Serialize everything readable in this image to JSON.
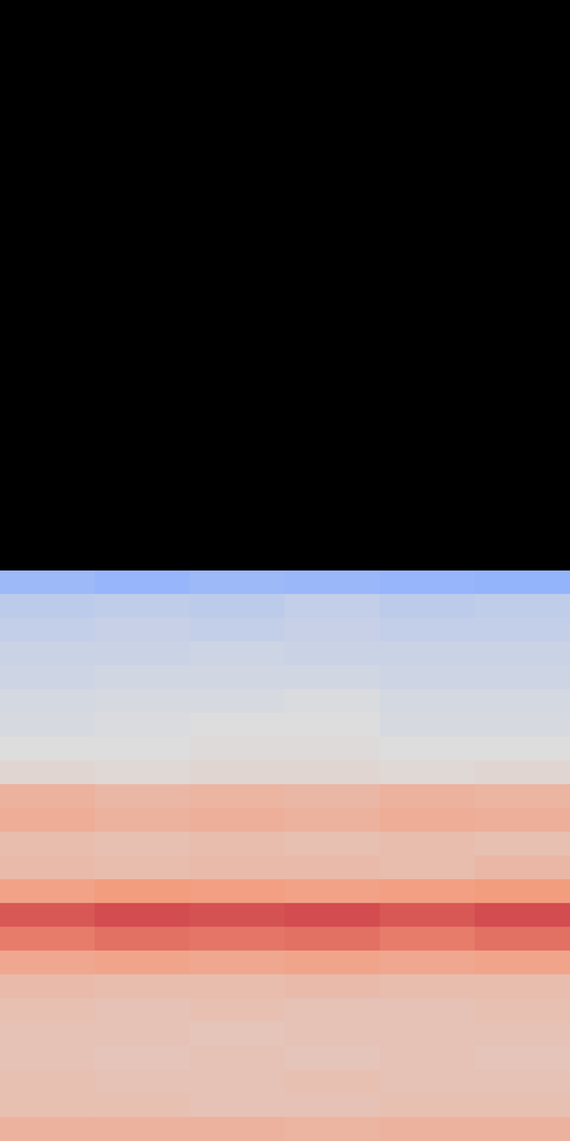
{
  "chart_data": {
    "type": "heatmap",
    "tick_labels": false,
    "xlim": [
      0,
      6
    ],
    "ylim": [
      0,
      24
    ],
    "zlim": [
      0,
      1
    ],
    "cells": [
      [
        0.3,
        0.28,
        0.3,
        0.29,
        0.28,
        0.27
      ],
      [
        0.4,
        0.41,
        0.4,
        0.42,
        0.4,
        0.41
      ],
      [
        0.42,
        0.43,
        0.42,
        0.43,
        0.42,
        0.42
      ],
      [
        0.44,
        0.44,
        0.45,
        0.44,
        0.44,
        0.44
      ],
      [
        0.45,
        0.46,
        0.46,
        0.46,
        0.45,
        0.45
      ],
      [
        0.47,
        0.48,
        0.48,
        0.49,
        0.47,
        0.47
      ],
      [
        0.48,
        0.49,
        0.5,
        0.5,
        0.48,
        0.48
      ],
      [
        0.5,
        0.5,
        0.51,
        0.51,
        0.5,
        0.5
      ],
      [
        0.53,
        0.52,
        0.53,
        0.53,
        0.52,
        0.53
      ],
      [
        0.66,
        0.64,
        0.65,
        0.64,
        0.66,
        0.65
      ],
      [
        0.68,
        0.66,
        0.67,
        0.66,
        0.68,
        0.67
      ],
      [
        0.62,
        0.61,
        0.62,
        0.61,
        0.62,
        0.61
      ],
      [
        0.63,
        0.62,
        0.63,
        0.63,
        0.62,
        0.64
      ],
      [
        0.72,
        0.74,
        0.73,
        0.72,
        0.73,
        0.74
      ],
      [
        0.86,
        0.88,
        0.87,
        0.88,
        0.86,
        0.88
      ],
      [
        0.8,
        0.82,
        0.81,
        0.82,
        0.8,
        0.82
      ],
      [
        0.7,
        0.71,
        0.7,
        0.71,
        0.7,
        0.71
      ],
      [
        0.63,
        0.62,
        0.62,
        0.63,
        0.62,
        0.62
      ],
      [
        0.61,
        0.6,
        0.61,
        0.6,
        0.6,
        0.61
      ],
      [
        0.6,
        0.6,
        0.59,
        0.6,
        0.6,
        0.6
      ],
      [
        0.6,
        0.59,
        0.6,
        0.59,
        0.6,
        0.59
      ],
      [
        0.61,
        0.6,
        0.6,
        0.61,
        0.6,
        0.6
      ],
      [
        0.61,
        0.61,
        0.6,
        0.6,
        0.61,
        0.61
      ],
      [
        0.66,
        0.66,
        0.66,
        0.65,
        0.66,
        0.66
      ]
    ]
  }
}
